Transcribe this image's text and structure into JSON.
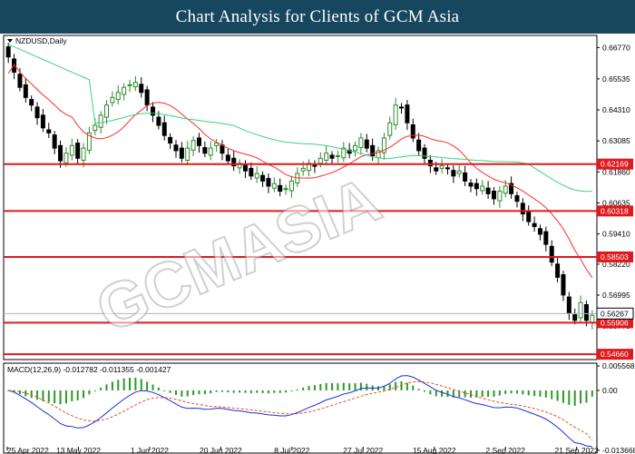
{
  "header": {
    "title": "Chart Analysis for Clients of GCM Asia"
  },
  "symbol_label": "NZDUSD,Daily",
  "watermark": "GCMASIA",
  "colors": {
    "header_bg": "#17465f",
    "bull_candle": "#2e8b2e",
    "bear_candle": "#000000",
    "ma_fast": "#ff2a2a",
    "ma_slow": "#3cd27a",
    "sr_line": "#e0191d",
    "macd_line": "#1f2fd6",
    "signal_line": "#e0502a",
    "histogram": "#2a9a2a",
    "current_price_box": "#ffffff"
  },
  "chart_data": [
    {
      "type": "candlestick",
      "instrument": "NZDUSD,Daily",
      "x_labels": [
        "25 Apr 2022",
        "13 May 2022",
        "1 Jun 2022",
        "20 Jun 2022",
        "8 Jul 2022",
        "27 Jul 2022",
        "15 Aug 2022",
        "2 Sep 2022",
        "21 Sep 2022"
      ],
      "y_ticks": [
        "0.66770",
        "0.65535",
        "0.64310",
        "0.63085",
        "0.61860",
        "0.60635",
        "0.59410",
        "0.58220",
        "0.56995",
        "0.55770",
        "0.54550"
      ],
      "ylim": [
        0.5445,
        0.6725
      ],
      "levels": [
        "0.62169",
        "0.60318",
        "0.58503",
        "0.55906",
        "0.54660"
      ],
      "current_price": "0.56267",
      "closes": [
        0.664,
        0.658,
        0.652,
        0.648,
        0.645,
        0.64,
        0.636,
        0.634,
        0.628,
        0.623,
        0.626,
        0.629,
        0.624,
        0.628,
        0.634,
        0.637,
        0.641,
        0.645,
        0.648,
        0.65,
        0.652,
        0.653,
        0.654,
        0.65,
        0.645,
        0.641,
        0.637,
        0.633,
        0.63,
        0.627,
        0.624,
        0.628,
        0.631,
        0.629,
        0.626,
        0.628,
        0.63,
        0.626,
        0.623,
        0.621,
        0.622,
        0.619,
        0.617,
        0.618,
        0.615,
        0.613,
        0.614,
        0.611,
        0.612,
        0.615,
        0.618,
        0.62,
        0.622,
        0.621,
        0.624,
        0.626,
        0.624,
        0.625,
        0.628,
        0.626,
        0.629,
        0.632,
        0.628,
        0.625,
        0.627,
        0.632,
        0.638,
        0.645,
        0.644,
        0.638,
        0.632,
        0.627,
        0.624,
        0.621,
        0.619,
        0.621,
        0.62,
        0.617,
        0.619,
        0.615,
        0.613,
        0.612,
        0.613,
        0.61,
        0.608,
        0.611,
        0.613,
        0.61,
        0.607,
        0.602,
        0.599,
        0.597,
        0.594,
        0.59,
        0.583,
        0.577,
        0.57,
        0.563,
        0.56,
        0.567,
        0.56,
        0.562
      ],
      "ma_fast_start": 0.6575,
      "ma_slow_start": 0.669,
      "ma_slow_end": 0.611
    },
    {
      "type": "macd",
      "label": "MACD(12,26,9) -0.012782 -0.011355 -0.001427",
      "y_ticks": [
        "0.005568",
        "0.00",
        "-0.013668"
      ],
      "ylim": [
        -0.0145,
        0.0062
      ],
      "macd": -0.012782,
      "signal": -0.011355,
      "histogram": -0.001427
    }
  ]
}
